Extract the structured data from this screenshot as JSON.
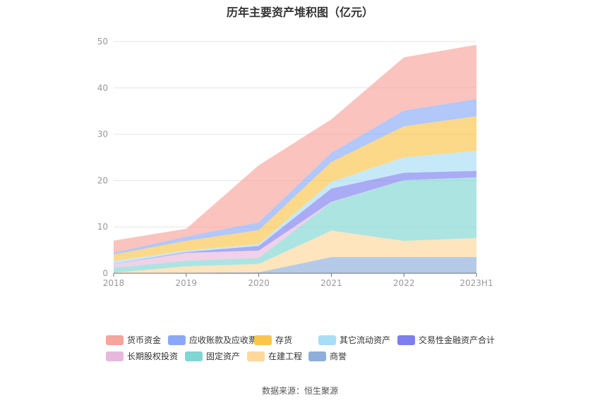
{
  "chart_data": {
    "type": "area",
    "stacked": true,
    "title": "历年主要资产堆积图（亿元）",
    "categories": [
      "2018",
      "2019",
      "2020",
      "2021",
      "2022",
      "2023H1"
    ],
    "ylim": [
      0,
      50
    ],
    "yticks": [
      0,
      10,
      20,
      30,
      40,
      50
    ],
    "grid": true,
    "legend_position": "bottom",
    "series": [
      {
        "name": "商誉",
        "color": "#8eaedb",
        "values": [
          0,
          0.1,
          0.2,
          3.5,
          3.5,
          3.5
        ]
      },
      {
        "name": "在建工程",
        "color": "#fed79a",
        "values": [
          0.1,
          1.4,
          1.8,
          5.7,
          3.5,
          4.1
        ]
      },
      {
        "name": "固定资产",
        "color": "#7fd6d3",
        "values": [
          1.1,
          1.2,
          1.3,
          6.1,
          13.1,
          13.1
        ]
      },
      {
        "name": "长期股权投资",
        "color": "#e8b8dc",
        "values": [
          0.8,
          1.7,
          1.6,
          0.1,
          0.0,
          0.0
        ]
      },
      {
        "name": "交易性金融资产合计",
        "color": "#7d7ef0",
        "values": [
          0.05,
          0.2,
          1.0,
          2.9,
          1.6,
          1.4
        ]
      },
      {
        "name": "其它流动资产",
        "color": "#a8ddf8",
        "values": [
          0.6,
          0.3,
          0.4,
          1.4,
          3.3,
          4.3
        ]
      },
      {
        "name": "存货",
        "color": "#fbc44a",
        "values": [
          1.4,
          2.1,
          3.0,
          4.3,
          6.7,
          7.5
        ]
      },
      {
        "name": "应收账款及应收票据",
        "color": "#89a9f8",
        "values": [
          0.4,
          0.9,
          1.7,
          2.0,
          3.4,
          3.7
        ]
      },
      {
        "name": "货币资金",
        "color": "#f8a39b",
        "values": [
          2.6,
          1.7,
          12.3,
          7.2,
          11.5,
          11.7
        ]
      }
    ],
    "legend_order": [
      "货币资金",
      "应收账款及应收票据",
      "存货",
      "其它流动资产",
      "交易性金融资产合计",
      "长期股权投资",
      "固定资产",
      "在建工程",
      "商誉"
    ]
  },
  "source": "数据来源：恒生聚源"
}
